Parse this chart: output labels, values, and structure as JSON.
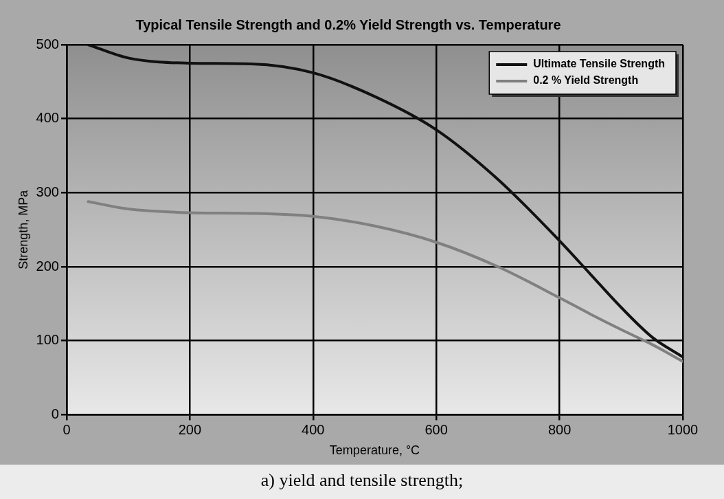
{
  "chart_data": {
    "type": "line",
    "title": "Typical Tensile Strength and 0.2% Yield Strength vs. Temperature",
    "xlabel": "Temperature, °C",
    "ylabel": "Strength, MPa",
    "x": [
      35,
      100,
      200,
      300,
      400,
      500,
      600,
      700,
      800,
      850,
      900,
      950,
      1000
    ],
    "series": [
      {
        "name": "Ultimate Tensile Strength",
        "color": "#111111",
        "values": [
          500,
          482,
          475,
          474,
          462,
          430,
          385,
          318,
          235,
          190,
          145,
          105,
          78
        ]
      },
      {
        "name": "0.2 % Yield Strength",
        "color": "#808080",
        "values": [
          288,
          278,
          273,
          272,
          268,
          255,
          233,
          200,
          158,
          136,
          115,
          95,
          72
        ]
      }
    ],
    "xlim": [
      0,
      1000
    ],
    "xticks": [
      0,
      200,
      400,
      600,
      800,
      1000
    ],
    "ylim": [
      0,
      500
    ],
    "yticks": [
      0,
      100,
      200,
      300,
      400,
      500
    ],
    "grid": true,
    "legend": "top right",
    "marker": "none",
    "line_style": "solid",
    "annotations": [
      "a) yield and tensile strength;"
    ]
  }
}
